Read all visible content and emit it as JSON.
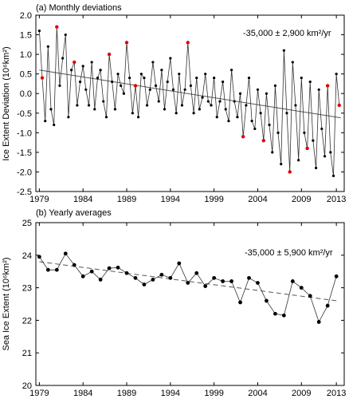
{
  "chart_data": [
    {
      "type": "line",
      "title": "(a) Monthly deviations",
      "ylabel": "Ice Extent Deviation (10⁶km²)",
      "xlabel": "",
      "annotation": "-35,000  ± 2,900 km²/yr",
      "xlim": [
        1978.6,
        2013.9
      ],
      "ylim": [
        -2.5,
        2.0
      ],
      "x_ticks": [
        1979,
        1984,
        1989,
        1994,
        1999,
        2004,
        2009,
        2013
      ],
      "y_ticks": [
        "-2.5",
        "-2.0",
        "-1.5",
        "-1.0",
        "-0.5",
        "0.0",
        "0.5",
        "1.0",
        "1.5",
        "2.0"
      ],
      "y_tick_values": [
        -2.5,
        -2.0,
        -1.5,
        -1.0,
        -0.5,
        0.0,
        0.5,
        1.0,
        1.5,
        2.0
      ],
      "grid": false,
      "trend": {
        "x": [
          1979,
          2013.5
        ],
        "y": [
          0.6,
          -0.62
        ],
        "style": "solid"
      },
      "series": [
        {
          "x": [
            1979.0,
            1979.33,
            1979.67,
            1980.0,
            1980.33,
            1980.67,
            1981.0,
            1981.33,
            1981.67,
            1982.0,
            1982.33,
            1982.67,
            1983.0,
            1983.33,
            1983.67,
            1984.0,
            1984.33,
            1984.67,
            1985.0,
            1985.33,
            1985.67,
            1986.0,
            1986.33,
            1986.67,
            1987.0,
            1987.33,
            1987.67,
            1988.0,
            1988.33,
            1988.67,
            1989.0,
            1989.33,
            1989.67,
            1990.0,
            1990.33,
            1990.67,
            1991.0,
            1991.33,
            1991.67,
            1992.0,
            1992.33,
            1992.67,
            1993.0,
            1993.33,
            1993.67,
            1994.0,
            1994.33,
            1994.67,
            1995.0,
            1995.33,
            1995.67,
            1996.0,
            1996.33,
            1996.67,
            1997.0,
            1997.33,
            1997.67,
            1998.0,
            1998.33,
            1998.67,
            1999.0,
            1999.33,
            1999.67,
            2000.0,
            2000.33,
            2000.67,
            2001.0,
            2001.33,
            2001.67,
            2002.0,
            2002.33,
            2002.67,
            2003.0,
            2003.33,
            2003.67,
            2004.0,
            2004.33,
            2004.67,
            2005.0,
            2005.33,
            2005.67,
            2006.0,
            2006.33,
            2006.67,
            2007.0,
            2007.33,
            2007.67,
            2008.0,
            2008.33,
            2008.67,
            2009.0,
            2009.33,
            2009.67,
            2010.0,
            2010.33,
            2010.67,
            2011.0,
            2011.33,
            2011.67,
            2012.0,
            2012.33,
            2012.67,
            2013.0,
            2013.33
          ],
          "y": [
            1.6,
            0.4,
            -0.7,
            1.2,
            -0.4,
            -0.8,
            1.7,
            0.2,
            0.9,
            1.5,
            -0.6,
            0.6,
            0.8,
            -0.3,
            0.3,
            0.7,
            0.1,
            -0.3,
            0.8,
            -0.4,
            0.4,
            0.6,
            -0.2,
            -0.6,
            1.0,
            0.3,
            -0.4,
            0.5,
            0.2,
            0.0,
            1.3,
            0.4,
            -0.5,
            0.2,
            -0.6,
            0.5,
            0.4,
            -0.3,
            0.1,
            0.8,
            0.2,
            -0.2,
            0.6,
            -0.4,
            0.3,
            0.9,
            0.1,
            -0.5,
            0.5,
            -0.3,
            0.1,
            1.3,
            0.2,
            -0.5,
            0.4,
            -0.4,
            -0.1,
            0.5,
            -0.2,
            -0.3,
            0.4,
            -0.6,
            -0.2,
            0.3,
            -0.4,
            -0.7,
            0.6,
            -0.2,
            -0.6,
            0.0,
            -1.1,
            -0.3,
            0.4,
            -0.7,
            -0.9,
            0.1,
            -0.5,
            -1.2,
            0.0,
            -0.8,
            -1.5,
            0.2,
            -1.0,
            -1.8,
            1.1,
            -0.5,
            -2.0,
            0.8,
            -0.3,
            -1.7,
            0.4,
            -1.0,
            -1.4,
            0.3,
            -1.2,
            -1.9,
            0.1,
            -0.9,
            -1.6,
            0.2,
            -1.5,
            -2.1,
            0.5,
            -0.3
          ],
          "highlight": [
            1979.33,
            1981.0,
            1983.0,
            1987.0,
            1989.0,
            1990.0,
            1996.0,
            2002.33,
            2004.67,
            2007.67,
            2009.67,
            2012.0,
            2013.33
          ]
        }
      ]
    },
    {
      "type": "line",
      "title": "(b) Yearly averages",
      "ylabel": "Sea Ice Extent (10⁶km²)",
      "xlabel": "",
      "annotation": "-35,000 ± 5,900 km²/yr",
      "xlim": [
        1978.6,
        2013.9
      ],
      "ylim": [
        20,
        25
      ],
      "x_ticks": [
        1979,
        1984,
        1989,
        1994,
        1999,
        2004,
        2009,
        2013
      ],
      "y_ticks": [
        "20",
        "21",
        "22",
        "23",
        "24",
        "25"
      ],
      "y_tick_values": [
        20,
        21,
        22,
        23,
        24,
        25
      ],
      "grid": false,
      "trend": {
        "x": [
          1979,
          2013
        ],
        "y": [
          23.8,
          22.6
        ],
        "style": "dashed"
      },
      "series": [
        {
          "x": [
            1979,
            1980,
            1981,
            1982,
            1983,
            1984,
            1985,
            1986,
            1987,
            1988,
            1989,
            1990,
            1991,
            1992,
            1993,
            1994,
            1995,
            1996,
            1997,
            1998,
            1999,
            2000,
            2001,
            2002,
            2003,
            2004,
            2005,
            2006,
            2007,
            2008,
            2009,
            2010,
            2011,
            2012,
            2013
          ],
          "y": [
            23.95,
            23.55,
            23.55,
            24.05,
            23.7,
            23.35,
            23.5,
            23.25,
            23.6,
            23.62,
            23.45,
            23.3,
            23.1,
            23.25,
            23.4,
            23.3,
            23.75,
            23.15,
            23.45,
            23.05,
            23.3,
            23.2,
            23.2,
            22.55,
            23.3,
            23.15,
            22.6,
            22.2,
            22.15,
            23.2,
            23.0,
            22.75,
            21.95,
            22.45,
            23.35
          ]
        }
      ]
    }
  ]
}
